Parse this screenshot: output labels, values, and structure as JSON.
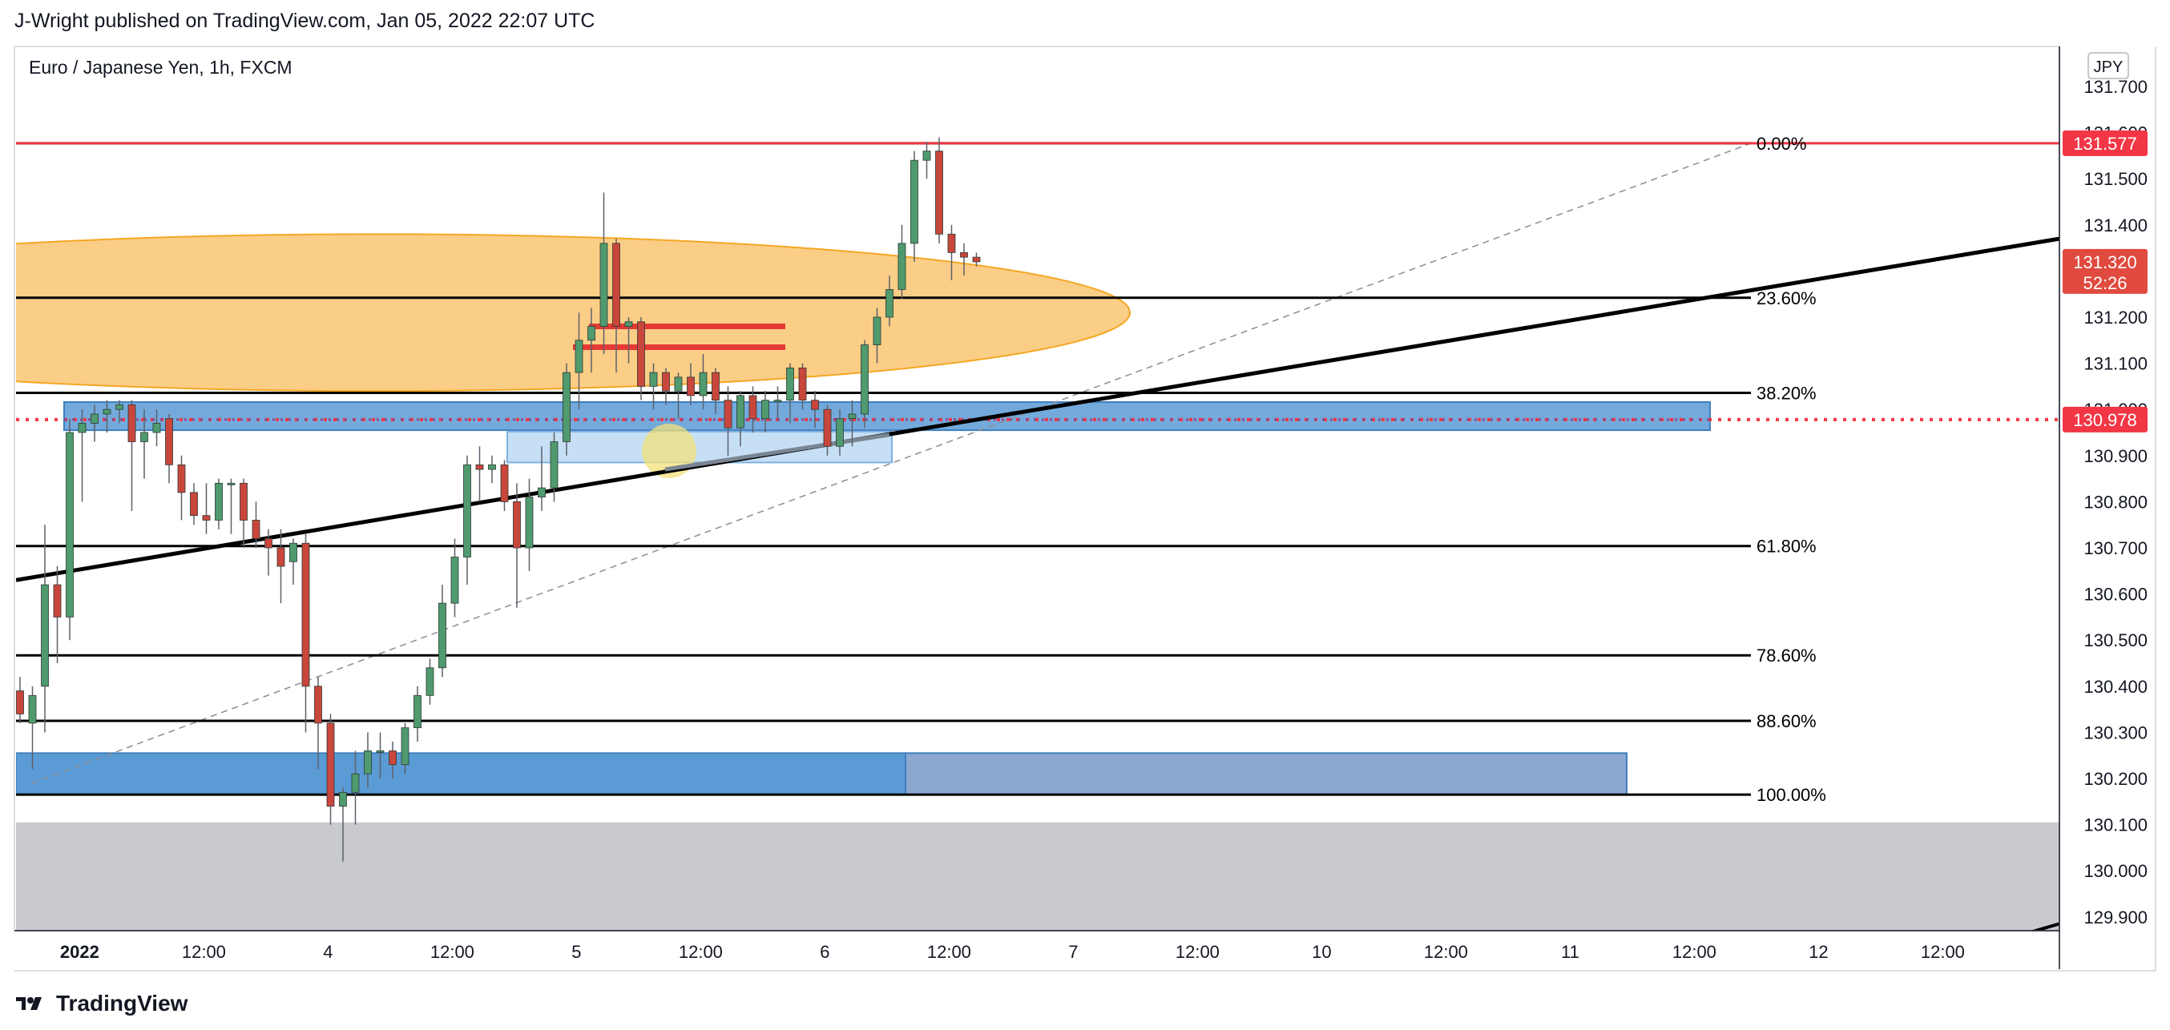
{
  "header": {
    "published_line": "J-Wright published on TradingView.com, Jan 05, 2022 22:07 UTC"
  },
  "footer": {
    "brand": "TradingView"
  },
  "chart_data": {
    "type": "candlestick",
    "title": "Euro / Japanese Yen, 1h, FXCM",
    "currency_badge": "JPY",
    "y_axis": {
      "min": 129.85,
      "max": 131.75,
      "ticks": [
        131.7,
        131.6,
        131.5,
        131.4,
        131.3,
        131.2,
        131.1,
        131.0,
        130.9,
        130.8,
        130.7,
        130.6,
        130.5,
        130.4,
        130.3,
        130.2,
        130.1,
        130.0,
        129.9
      ],
      "tick_labels": [
        "131.700",
        "131.600",
        "131.500",
        "131.400",
        "131.300",
        "131.200",
        "131.100",
        "131.000",
        "130.900",
        "130.800",
        "130.700",
        "130.600",
        "130.500",
        "130.400",
        "130.300",
        "130.200",
        "130.100",
        "130.000",
        "129.900"
      ]
    },
    "x_axis": {
      "start_index": 0,
      "end_index": 82,
      "ticks": [
        {
          "i": 4.8,
          "label": "2022"
        },
        {
          "i": 14.8,
          "label": "12:00"
        },
        {
          "i": 24.8,
          "label": "4"
        },
        {
          "i": 34.8,
          "label": "12:00"
        },
        {
          "i": 44.8,
          "label": "5"
        },
        {
          "i": 54.8,
          "label": "12:00"
        },
        {
          "i": 64.8,
          "label": "6"
        },
        {
          "i": 74.8,
          "label": "12:00"
        },
        {
          "i": 84.8,
          "label": "7"
        },
        {
          "i": 94.8,
          "label": "12:00"
        },
        {
          "i": 104.8,
          "label": "10"
        },
        {
          "i": 114.8,
          "label": "12:00"
        },
        {
          "i": 124.8,
          "label": "11"
        },
        {
          "i": 134.8,
          "label": "12:00"
        },
        {
          "i": 144.8,
          "label": "12"
        },
        {
          "i": 154.8,
          "label": "12:00"
        }
      ]
    },
    "candles": [
      {
        "o": 130.39,
        "h": 130.42,
        "l": 130.32,
        "c": 130.34
      },
      {
        "o": 130.32,
        "h": 130.4,
        "l": 130.22,
        "c": 130.38
      },
      {
        "o": 130.4,
        "h": 130.75,
        "l": 130.3,
        "c": 130.62
      },
      {
        "o": 130.62,
        "h": 130.66,
        "l": 130.45,
        "c": 130.55
      },
      {
        "o": 130.55,
        "h": 130.98,
        "l": 130.5,
        "c": 130.95
      },
      {
        "o": 130.95,
        "h": 131.0,
        "l": 130.8,
        "c": 130.97
      },
      {
        "o": 130.97,
        "h": 131.01,
        "l": 130.93,
        "c": 130.99
      },
      {
        "o": 130.99,
        "h": 131.02,
        "l": 130.95,
        "c": 131.0
      },
      {
        "o": 131.0,
        "h": 131.02,
        "l": 130.97,
        "c": 131.01
      },
      {
        "o": 131.01,
        "h": 131.02,
        "l": 130.78,
        "c": 130.93
      },
      {
        "o": 130.93,
        "h": 131.0,
        "l": 130.85,
        "c": 130.95
      },
      {
        "o": 130.95,
        "h": 131.0,
        "l": 130.92,
        "c": 130.97
      },
      {
        "o": 130.98,
        "h": 130.99,
        "l": 130.84,
        "c": 130.88
      },
      {
        "o": 130.88,
        "h": 130.9,
        "l": 130.76,
        "c": 130.82
      },
      {
        "o": 130.82,
        "h": 130.84,
        "l": 130.75,
        "c": 130.77
      },
      {
        "o": 130.77,
        "h": 130.84,
        "l": 130.73,
        "c": 130.76
      },
      {
        "o": 130.76,
        "h": 130.85,
        "l": 130.74,
        "c": 130.84
      },
      {
        "o": 130.84,
        "h": 130.85,
        "l": 130.73,
        "c": 130.84
      },
      {
        "o": 130.84,
        "h": 130.85,
        "l": 130.7,
        "c": 130.76
      },
      {
        "o": 130.76,
        "h": 130.8,
        "l": 130.7,
        "c": 130.72
      },
      {
        "o": 130.72,
        "h": 130.74,
        "l": 130.64,
        "c": 130.7
      },
      {
        "o": 130.7,
        "h": 130.74,
        "l": 130.58,
        "c": 130.66
      },
      {
        "o": 130.67,
        "h": 130.72,
        "l": 130.62,
        "c": 130.71
      },
      {
        "o": 130.71,
        "h": 130.73,
        "l": 130.3,
        "c": 130.4
      },
      {
        "o": 130.4,
        "h": 130.42,
        "l": 130.22,
        "c": 130.32
      },
      {
        "o": 130.32,
        "h": 130.34,
        "l": 130.1,
        "c": 130.14
      },
      {
        "o": 130.14,
        "h": 130.18,
        "l": 130.02,
        "c": 130.17
      },
      {
        "o": 130.17,
        "h": 130.26,
        "l": 130.1,
        "c": 130.21
      },
      {
        "o": 130.21,
        "h": 130.3,
        "l": 130.18,
        "c": 130.26
      },
      {
        "o": 130.26,
        "h": 130.3,
        "l": 130.2,
        "c": 130.26
      },
      {
        "o": 130.26,
        "h": 130.28,
        "l": 130.2,
        "c": 130.23
      },
      {
        "o": 130.23,
        "h": 130.32,
        "l": 130.21,
        "c": 130.31
      },
      {
        "o": 130.31,
        "h": 130.4,
        "l": 130.28,
        "c": 130.38
      },
      {
        "o": 130.38,
        "h": 130.46,
        "l": 130.36,
        "c": 130.44
      },
      {
        "o": 130.44,
        "h": 130.62,
        "l": 130.42,
        "c": 130.58
      },
      {
        "o": 130.58,
        "h": 130.72,
        "l": 130.55,
        "c": 130.68
      },
      {
        "o": 130.68,
        "h": 130.9,
        "l": 130.62,
        "c": 130.88
      },
      {
        "o": 130.88,
        "h": 130.92,
        "l": 130.8,
        "c": 130.87
      },
      {
        "o": 130.87,
        "h": 130.9,
        "l": 130.84,
        "c": 130.88
      },
      {
        "o": 130.88,
        "h": 130.89,
        "l": 130.78,
        "c": 130.8
      },
      {
        "o": 130.8,
        "h": 130.84,
        "l": 130.57,
        "c": 130.7
      },
      {
        "o": 130.7,
        "h": 130.85,
        "l": 130.65,
        "c": 130.81
      },
      {
        "o": 130.81,
        "h": 130.92,
        "l": 130.78,
        "c": 130.83
      },
      {
        "o": 130.83,
        "h": 130.95,
        "l": 130.8,
        "c": 130.93
      },
      {
        "o": 130.93,
        "h": 131.1,
        "l": 130.9,
        "c": 131.08
      },
      {
        "o": 131.08,
        "h": 131.21,
        "l": 131.0,
        "c": 131.15
      },
      {
        "o": 131.15,
        "h": 131.22,
        "l": 131.08,
        "c": 131.18
      },
      {
        "o": 131.18,
        "h": 131.47,
        "l": 131.12,
        "c": 131.36
      },
      {
        "o": 131.36,
        "h": 131.37,
        "l": 131.08,
        "c": 131.18
      },
      {
        "o": 131.18,
        "h": 131.2,
        "l": 131.1,
        "c": 131.19
      },
      {
        "o": 131.19,
        "h": 131.2,
        "l": 131.02,
        "c": 131.05
      },
      {
        "o": 131.05,
        "h": 131.1,
        "l": 131.0,
        "c": 131.08
      },
      {
        "o": 131.08,
        "h": 131.09,
        "l": 131.01,
        "c": 131.04
      },
      {
        "o": 131.04,
        "h": 131.08,
        "l": 130.98,
        "c": 131.07
      },
      {
        "o": 131.07,
        "h": 131.1,
        "l": 131.01,
        "c": 131.03
      },
      {
        "o": 131.03,
        "h": 131.12,
        "l": 131.0,
        "c": 131.08
      },
      {
        "o": 131.08,
        "h": 131.09,
        "l": 130.99,
        "c": 131.02
      },
      {
        "o": 131.02,
        "h": 131.05,
        "l": 130.9,
        "c": 130.96
      },
      {
        "o": 130.96,
        "h": 131.04,
        "l": 130.92,
        "c": 131.03
      },
      {
        "o": 131.03,
        "h": 131.05,
        "l": 130.95,
        "c": 130.98
      },
      {
        "o": 130.98,
        "h": 131.04,
        "l": 130.95,
        "c": 131.02
      },
      {
        "o": 131.02,
        "h": 131.05,
        "l": 130.98,
        "c": 131.02
      },
      {
        "o": 131.02,
        "h": 131.1,
        "l": 130.97,
        "c": 131.09
      },
      {
        "o": 131.09,
        "h": 131.1,
        "l": 131.0,
        "c": 131.02
      },
      {
        "o": 131.02,
        "h": 131.04,
        "l": 130.96,
        "c": 131.0
      },
      {
        "o": 131.0,
        "h": 131.01,
        "l": 130.9,
        "c": 130.92
      },
      {
        "o": 130.92,
        "h": 131.0,
        "l": 130.9,
        "c": 130.98
      },
      {
        "o": 130.98,
        "h": 131.02,
        "l": 130.92,
        "c": 130.99
      },
      {
        "o": 130.99,
        "h": 131.15,
        "l": 130.96,
        "c": 131.14
      },
      {
        "o": 131.14,
        "h": 131.22,
        "l": 131.1,
        "c": 131.2
      },
      {
        "o": 131.2,
        "h": 131.29,
        "l": 131.18,
        "c": 131.26
      },
      {
        "o": 131.26,
        "h": 131.4,
        "l": 131.24,
        "c": 131.36
      },
      {
        "o": 131.36,
        "h": 131.56,
        "l": 131.32,
        "c": 131.54
      },
      {
        "o": 131.54,
        "h": 131.58,
        "l": 131.5,
        "c": 131.56
      },
      {
        "o": 131.56,
        "h": 131.59,
        "l": 131.36,
        "c": 131.38
      },
      {
        "o": 131.38,
        "h": 131.4,
        "l": 131.28,
        "c": 131.34
      },
      {
        "o": 131.34,
        "h": 131.36,
        "l": 131.29,
        "c": 131.33
      },
      {
        "o": 131.33,
        "h": 131.34,
        "l": 131.31,
        "c": 131.32
      }
    ],
    "price_labels": [
      {
        "price": 131.577,
        "label": "131.577",
        "color": "#f23645"
      },
      {
        "price": 131.32,
        "label": "131.320",
        "sub": "52:26",
        "color": "#e04a3f"
      },
      {
        "price": 130.978,
        "label": "130.978",
        "color": "#f23645"
      }
    ],
    "fib_levels": [
      {
        "price": 131.577,
        "label": "0.00%"
      },
      {
        "price": 131.242,
        "label": "23.60%"
      },
      {
        "price": 131.036,
        "label": "38.20%"
      },
      {
        "price": 130.704,
        "label": "61.80%"
      },
      {
        "price": 130.467,
        "label": "78.60%"
      },
      {
        "price": 130.325,
        "label": "88.60%"
      },
      {
        "price": 130.165,
        "label": "100.00%"
      }
    ],
    "colors": {
      "up": "#4f9a6e",
      "down": "#c9463d",
      "wick": "#5d606b",
      "fib_line": "#000000",
      "top_line": "#f23645",
      "ellipse_fill": "#fbc97a",
      "ellipse_stroke": "#f5a623",
      "zone_blue": "#5b9bd5",
      "zone_blue_dark": "#3f7fbf",
      "zone_light": "#c6dff5",
      "zone_grey": "#c9cace",
      "zone_grey_blue": "#8aa8d0",
      "highlight": "#f3e27a",
      "resistance_red": "#e53935"
    }
  }
}
